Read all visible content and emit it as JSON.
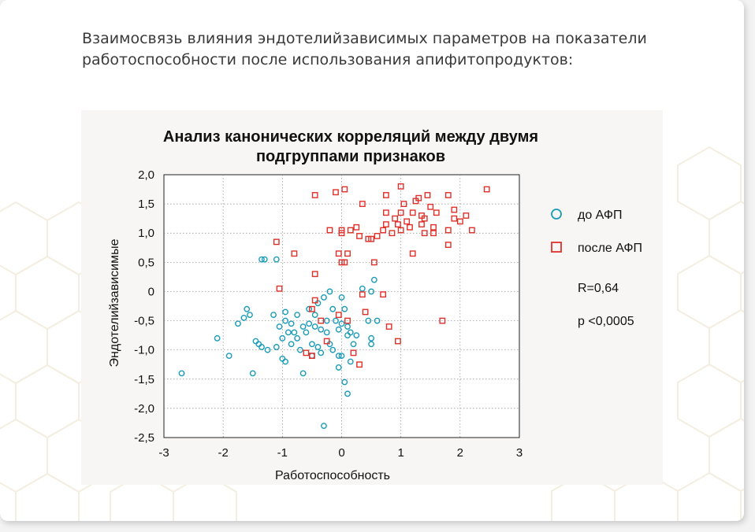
{
  "page": {
    "heading_line1": "Взаимосвязь влияния эндотелийзависимых параметров на показатели",
    "heading_line2": "работоспособности после использования апифитопродуктов:"
  },
  "chart_data": {
    "type": "scatter",
    "title_line1": "Анализ канонических корреляций между двумя",
    "title_line2": "подгруппами признаков",
    "xlabel": "Работоспособность",
    "ylabel": "Эндотелийзависимые",
    "xlim": [
      -3,
      3
    ],
    "ylim": [
      -2.5,
      2.0
    ],
    "x_ticks": [
      "-3",
      "-2",
      "-1",
      "0",
      "1",
      "2",
      "3"
    ],
    "y_ticks": [
      "2,0",
      "1,5",
      "1,0",
      "0,5",
      "0",
      "-0,5",
      "-1,0",
      "-1,5",
      "-2,0",
      "-2,5"
    ],
    "grid": true,
    "legend_position": "right",
    "annotations": [
      "R=0,64",
      "p <0,0005"
    ],
    "series": [
      {
        "name": "до АФП",
        "marker": "circle",
        "color": "#1a9bb8",
        "points": [
          [
            -2.7,
            -1.4
          ],
          [
            -2.1,
            -0.8
          ],
          [
            -1.9,
            -1.1
          ],
          [
            -1.75,
            -0.55
          ],
          [
            -1.65,
            -0.45
          ],
          [
            -1.6,
            -0.3
          ],
          [
            -1.55,
            -0.4
          ],
          [
            -1.5,
            -1.4
          ],
          [
            -1.45,
            -0.85
          ],
          [
            -1.4,
            -0.9
          ],
          [
            -1.35,
            -0.95
          ],
          [
            -1.35,
            0.55
          ],
          [
            -1.3,
            0.55
          ],
          [
            -1.25,
            -1.0
          ],
          [
            -1.15,
            -0.4
          ],
          [
            -1.1,
            -0.95
          ],
          [
            -1.1,
            0.55
          ],
          [
            -1.05,
            -0.6
          ],
          [
            -1.0,
            -0.8
          ],
          [
            -1.0,
            -1.15
          ],
          [
            -0.95,
            -0.35
          ],
          [
            -0.95,
            -0.5
          ],
          [
            -0.95,
            -1.2
          ],
          [
            -0.9,
            -0.7
          ],
          [
            -0.85,
            -0.9
          ],
          [
            -0.85,
            -0.55
          ],
          [
            -0.8,
            -0.7
          ],
          [
            -0.75,
            -0.8
          ],
          [
            -0.75,
            -0.4
          ],
          [
            -0.7,
            -1.0
          ],
          [
            -0.65,
            -0.6
          ],
          [
            -0.65,
            -1.4
          ],
          [
            -0.6,
            -0.7
          ],
          [
            -0.55,
            -0.3
          ],
          [
            -0.55,
            -0.55
          ],
          [
            -0.5,
            -0.9
          ],
          [
            -0.5,
            -1.1
          ],
          [
            -0.45,
            -0.4
          ],
          [
            -0.45,
            -0.6
          ],
          [
            -0.4,
            -0.2
          ],
          [
            -0.4,
            -0.95
          ],
          [
            -0.35,
            -0.65
          ],
          [
            -0.35,
            -1.05
          ],
          [
            -0.3,
            -0.1
          ],
          [
            -0.25,
            -0.7
          ],
          [
            -0.25,
            -0.5
          ],
          [
            -0.2,
            0.0
          ],
          [
            -0.2,
            -0.9
          ],
          [
            -0.15,
            -1.0
          ],
          [
            -0.15,
            -0.3
          ],
          [
            -0.1,
            -0.5
          ],
          [
            -0.05,
            -0.65
          ],
          [
            -0.05,
            -1.1
          ],
          [
            -0.05,
            -1.3
          ],
          [
            0.0,
            -0.1
          ],
          [
            0.0,
            -0.55
          ],
          [
            0.0,
            -1.1
          ],
          [
            0.05,
            -1.55
          ],
          [
            0.05,
            -0.3
          ],
          [
            0.1,
            -0.6
          ],
          [
            0.1,
            -0.75
          ],
          [
            0.1,
            -1.75
          ],
          [
            0.15,
            -0.7
          ],
          [
            0.15,
            -1.2
          ],
          [
            0.2,
            -0.9
          ],
          [
            0.25,
            -0.75
          ],
          [
            -0.3,
            -2.3
          ],
          [
            0.45,
            -0.5
          ],
          [
            0.5,
            0.0
          ],
          [
            0.5,
            -0.8
          ],
          [
            0.5,
            -0.9
          ],
          [
            0.55,
            0.2
          ],
          [
            0.6,
            -0.5
          ],
          [
            0.35,
            0.05
          ]
        ]
      },
      {
        "name": "после АФП",
        "marker": "square",
        "color": "#e0302a",
        "points": [
          [
            -1.1,
            0.85
          ],
          [
            -1.05,
            0.05
          ],
          [
            -0.8,
            0.65
          ],
          [
            -0.6,
            -1.05
          ],
          [
            -0.5,
            -0.3
          ],
          [
            -0.5,
            -1.1
          ],
          [
            -0.45,
            0.3
          ],
          [
            -0.45,
            -0.15
          ],
          [
            -0.45,
            1.65
          ],
          [
            -0.35,
            -0.5
          ],
          [
            -0.25,
            -0.85
          ],
          [
            -0.2,
            1.05
          ],
          [
            -0.1,
            1.7
          ],
          [
            -0.05,
            0.65
          ],
          [
            -0.05,
            -0.4
          ],
          [
            0.0,
            0.5
          ],
          [
            0.0,
            1.0
          ],
          [
            0.0,
            1.05
          ],
          [
            0.05,
            1.75
          ],
          [
            0.05,
            0.5
          ],
          [
            0.1,
            -0.5
          ],
          [
            0.1,
            0.65
          ],
          [
            0.15,
            1.05
          ],
          [
            0.2,
            -1.05
          ],
          [
            0.25,
            1.1
          ],
          [
            0.3,
            -1.25
          ],
          [
            0.3,
            0.95
          ],
          [
            0.35,
            -0.05
          ],
          [
            0.35,
            1.5
          ],
          [
            0.4,
            -0.35
          ],
          [
            0.45,
            0.9
          ],
          [
            0.5,
            0.9
          ],
          [
            0.55,
            0.5
          ],
          [
            0.6,
            0.95
          ],
          [
            0.7,
            -0.05
          ],
          [
            0.7,
            1.05
          ],
          [
            0.75,
            1.35
          ],
          [
            0.75,
            1.15
          ],
          [
            0.75,
            1.65
          ],
          [
            0.8,
            -0.6
          ],
          [
            0.85,
            1.0
          ],
          [
            0.9,
            1.25
          ],
          [
            0.95,
            1.15
          ],
          [
            1.0,
            1.05
          ],
          [
            1.0,
            1.35
          ],
          [
            1.0,
            1.8
          ],
          [
            1.05,
            1.5
          ],
          [
            1.1,
            1.2
          ],
          [
            1.15,
            1.1
          ],
          [
            1.2,
            1.35
          ],
          [
            1.2,
            0.65
          ],
          [
            1.25,
            1.55
          ],
          [
            1.3,
            1.6
          ],
          [
            1.35,
            1.15
          ],
          [
            1.35,
            1.3
          ],
          [
            1.4,
            1.0
          ],
          [
            1.4,
            1.25
          ],
          [
            1.45,
            1.65
          ],
          [
            1.5,
            1.45
          ],
          [
            1.55,
            1.1
          ],
          [
            1.55,
            1.0
          ],
          [
            1.6,
            1.35
          ],
          [
            1.7,
            -0.5
          ],
          [
            1.8,
            1.05
          ],
          [
            1.8,
            1.65
          ],
          [
            1.8,
            0.8
          ],
          [
            1.9,
            1.25
          ],
          [
            1.9,
            1.4
          ],
          [
            2.0,
            1.2
          ],
          [
            2.1,
            1.3
          ],
          [
            2.2,
            1.05
          ],
          [
            2.45,
            1.75
          ],
          [
            0.95,
            -0.85
          ]
        ]
      }
    ]
  }
}
